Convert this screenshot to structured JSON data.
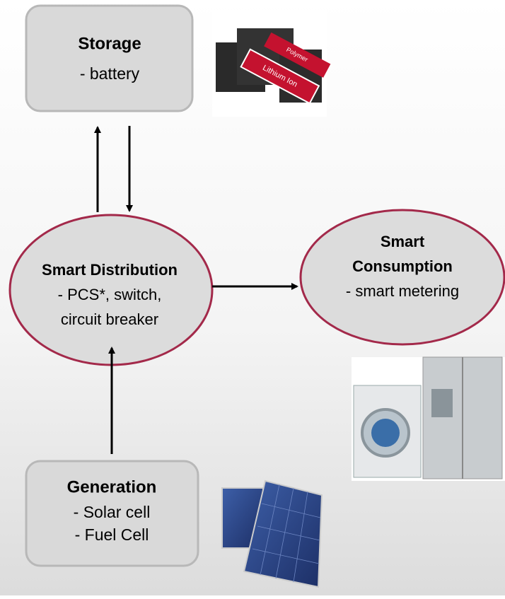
{
  "nodes": [
    {
      "title_lines": [
        "Storage"
      ],
      "lines": [
        "- battery"
      ]
    },
    {
      "title_lines": [
        "Smart Distribution"
      ],
      "lines": [
        "- PCS*, switch,",
        "circuit breaker"
      ]
    },
    {
      "title_lines": [
        "Smart",
        "Consumption"
      ],
      "lines": [
        "- smart metering"
      ]
    },
    {
      "title_lines": [
        "Generation"
      ],
      "lines": [
        "- Solar cell",
        "- Fuel Cell"
      ]
    }
  ],
  "images": {
    "battery_labels": [
      "Lithium Ion",
      "Polymer"
    ]
  }
}
